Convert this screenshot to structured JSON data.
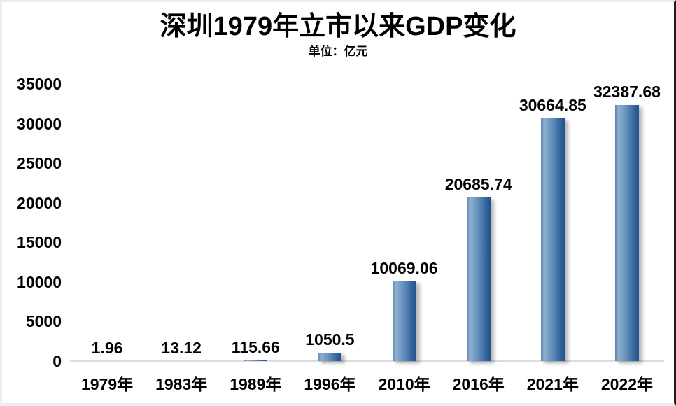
{
  "chart_data": {
    "type": "bar",
    "title": "深圳1979年立市以来GDP变化",
    "unit_label": "单位：亿元",
    "categories": [
      "1979年",
      "1983年",
      "1989年",
      "1996年",
      "2010年",
      "2016年",
      "2021年",
      "2022年"
    ],
    "values": [
      1.96,
      13.12,
      115.66,
      1050.5,
      10069.06,
      20685.74,
      30664.85,
      32387.68
    ],
    "value_labels": [
      "1.96",
      "13.12",
      "115.66",
      "1050.5",
      "10069.06",
      "20685.74",
      "30664.85",
      "32387.68"
    ],
    "xlabel": "",
    "ylabel": "",
    "ylim": [
      0,
      35000
    ],
    "yticks": [
      0,
      5000,
      10000,
      15000,
      20000,
      25000,
      30000,
      35000
    ],
    "grid": false,
    "legend_position": "none",
    "colors": {
      "bar_main": "#4f81bd",
      "bar_gradient": [
        "#5d83ad",
        "#8fafd2",
        "#6490bc",
        "#33669e",
        "#255089"
      ],
      "axis_line": "#dcdcdc",
      "text": "#000000",
      "background": "#ffffff"
    }
  }
}
